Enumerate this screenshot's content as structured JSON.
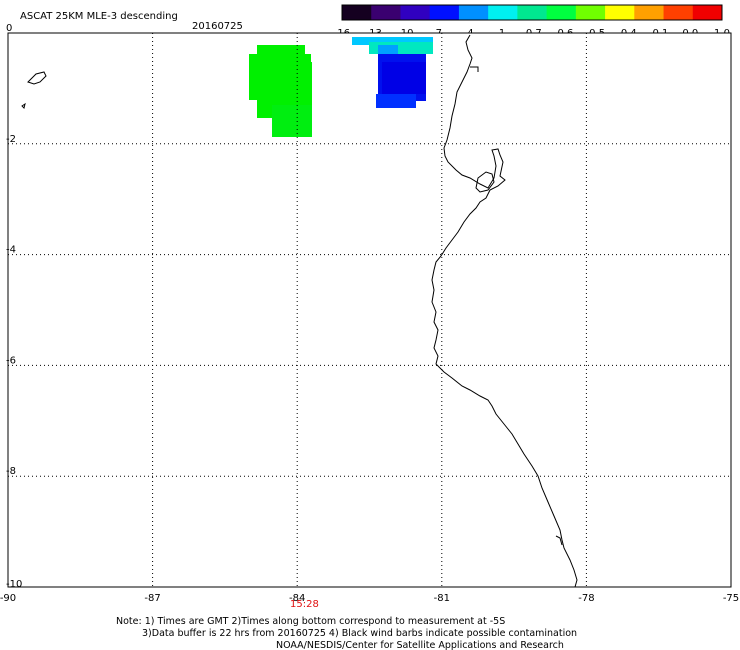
{
  "header": {
    "title": "ASCAT 25KM MLE-3 descending",
    "date": "20160725"
  },
  "colorbar": {
    "tick_labels": [
      "-16",
      "-13",
      "-10",
      "-7",
      "-4",
      "-1",
      "-0.7",
      "-0.6",
      "-0.5",
      "-0.4",
      "-0.1",
      "0.0",
      "1.0"
    ],
    "colors": [
      "#150020",
      "#3a0070",
      "#3000c0",
      "#0010ff",
      "#0090ff",
      "#00f0f0",
      "#00e890",
      "#00ff40",
      "#70ff00",
      "#ffff00",
      "#ffa000",
      "#ff4000",
      "#f00000"
    ]
  },
  "map": {
    "lon_range": [
      -90,
      -75
    ],
    "lat_range": [
      -10,
      0
    ],
    "lon_ticks": [
      -90,
      -87,
      -84,
      -81,
      -78,
      -75
    ],
    "lat_ticks": [
      0,
      -2,
      -4,
      -6,
      -8,
      -10
    ],
    "lon_labels": [
      "-90",
      "-87",
      "-84",
      "-81",
      "-78",
      "-75"
    ],
    "lat_labels": [
      "0",
      "-2",
      "-4",
      "-6",
      "-8",
      "-10"
    ],
    "time_label": "15:28",
    "grid": "dotted",
    "colors": {
      "land_outline": "#000000",
      "time": "#e01010",
      "green": "#00f000",
      "blue": "#0010ee",
      "cyan": "#00c8ff",
      "teal": "#00e8c0"
    }
  },
  "notes": {
    "line1": "Note: 1) Times are GMT 2)Times along bottom correspond to measurement at -5S",
    "line2": "3)Data buffer is 22 hrs from 20160725 4) Black wind barbs indicate possible contamination",
    "line3": "NOAA/NESDIS/Center for Satellite Applications and Research"
  }
}
